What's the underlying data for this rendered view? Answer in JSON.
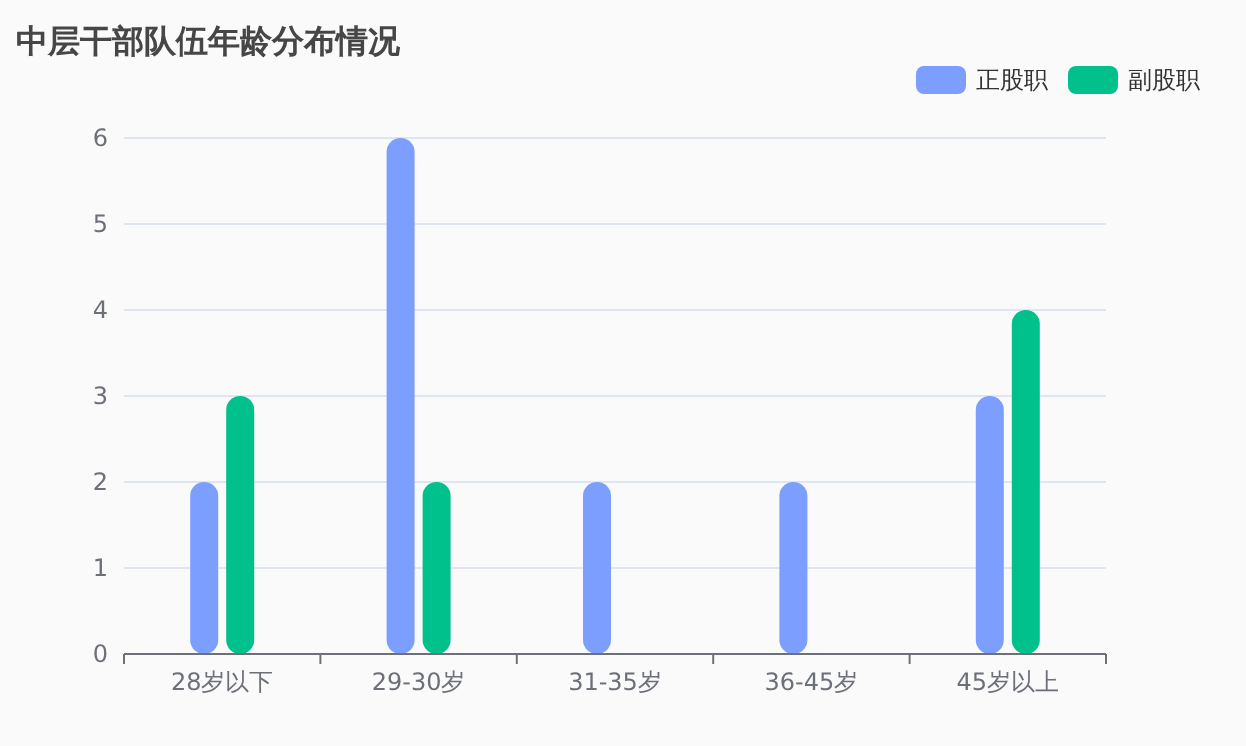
{
  "chart_data": {
    "type": "bar",
    "title": "中层干部队伍年龄分布情况",
    "categories": [
      "28岁以下",
      "29-30岁",
      "31-35岁",
      "36-45岁",
      "45岁以上"
    ],
    "series": [
      {
        "name": "正股职",
        "color": "#7b9eff",
        "values": [
          2,
          6,
          2,
          2,
          3
        ]
      },
      {
        "name": "副股职",
        "color": "#00c08b",
        "values": [
          3,
          2,
          null,
          null,
          4
        ]
      }
    ],
    "ylim": [
      0,
      6
    ],
    "yticks": [
      0,
      1,
      2,
      3,
      4,
      5,
      6
    ],
    "grid": "y",
    "legend": "top right"
  }
}
